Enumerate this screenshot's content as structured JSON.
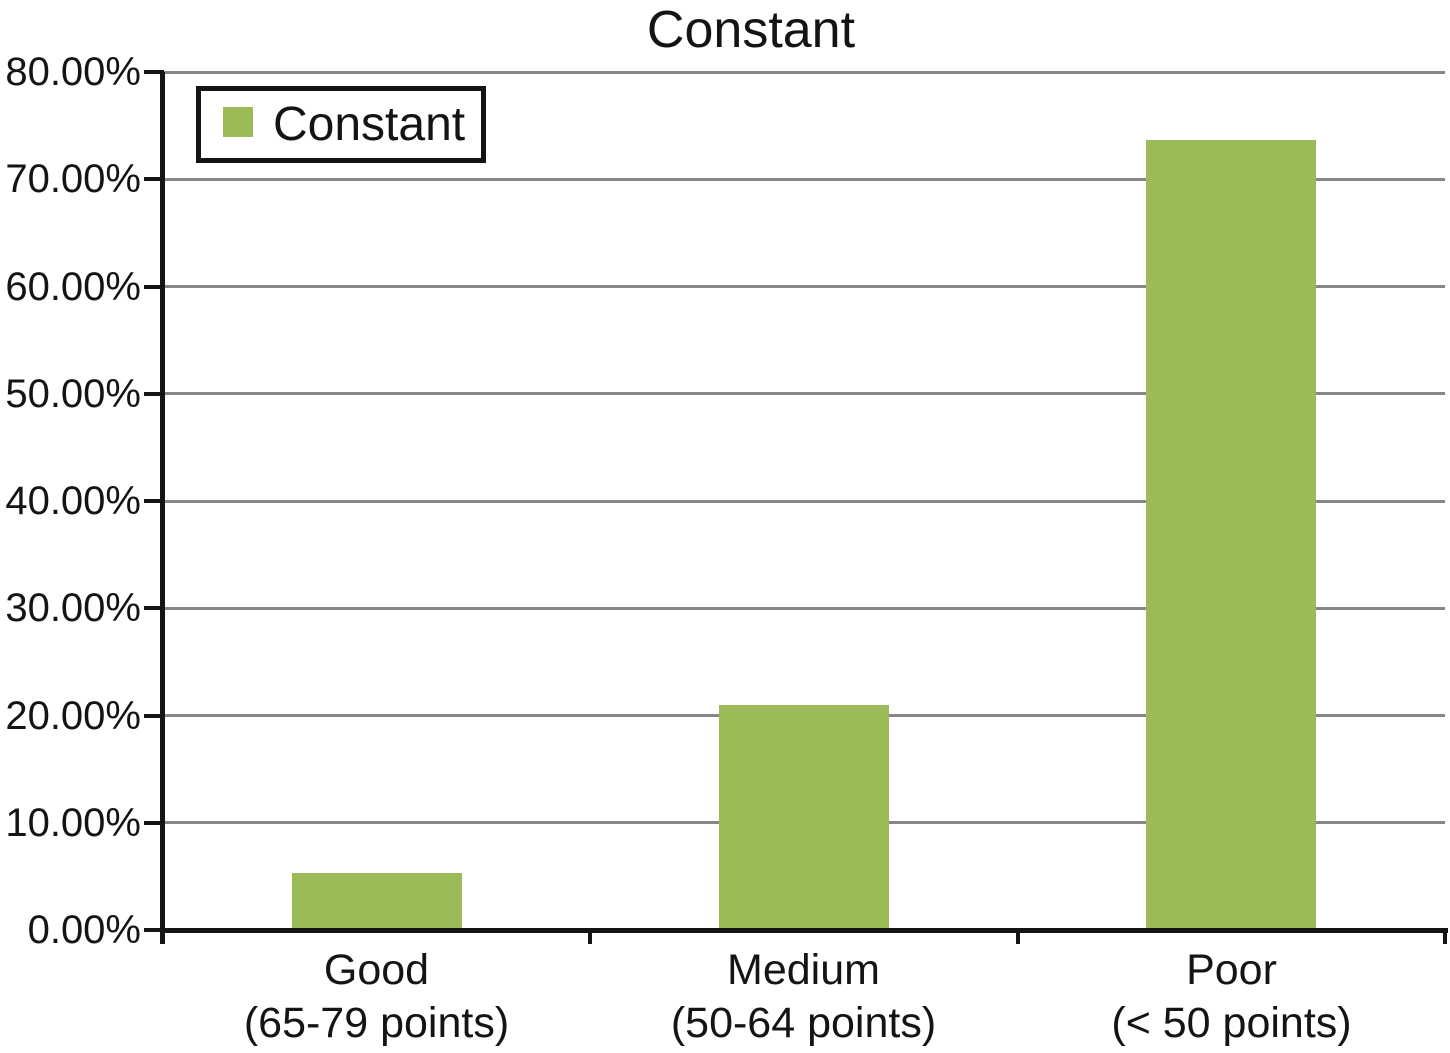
{
  "title": "Constant",
  "legend": {
    "label": "Constant",
    "position": "top-left"
  },
  "chart_data": {
    "type": "bar",
    "title": "Constant",
    "series_name": "Constant",
    "categories": [
      {
        "line1": "Good",
        "line2": "(65-79 points)"
      },
      {
        "line1": "Medium",
        "line2": "(50-64 points)"
      },
      {
        "line1": "Poor",
        "line2": "(< 50 points)"
      }
    ],
    "values": [
      5.3,
      21.0,
      73.7
    ],
    "value_unit": "%",
    "ylim": [
      0,
      80
    ],
    "ytick_step": 10,
    "ytick_labels": [
      "0.00%",
      "10.00%",
      "20.00%",
      "30.00%",
      "40.00%",
      "50.00%",
      "60.00%",
      "70.00%",
      "80.00%"
    ],
    "xlabel": "",
    "ylabel": "",
    "grid": true,
    "legend_position": "top-left",
    "bar_color": "#9bbb59",
    "gridline_color": "#878787",
    "axis_color": "#141414",
    "background_color": "#ffffff"
  }
}
